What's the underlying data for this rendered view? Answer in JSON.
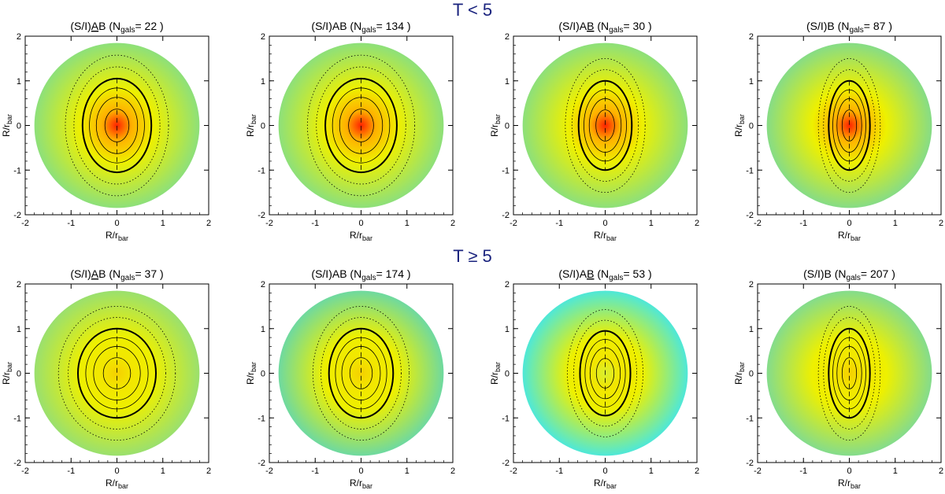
{
  "figure": {
    "rows": [
      {
        "title": "T < 5",
        "panels": [
          {
            "title": "(S/I)AB",
            "underline": "A",
            "ngals_label": "N",
            "ngals_sub": "gals",
            "ngals_value": "= 22 )",
            "peak": 1.0,
            "sx": 0.75,
            "sy": 1.05,
            "sigma": 0.62,
            "bg": "#8de07a"
          },
          {
            "title": "(S/I)AB",
            "underline": "",
            "ngals_label": "N",
            "ngals_sub": "gals",
            "ngals_value": "= 134 )",
            "peak": 0.95,
            "sx": 0.78,
            "sy": 1.05,
            "sigma": 0.6,
            "bg": "#8de07a"
          },
          {
            "title": "(S/I)AB",
            "underline": "B",
            "ngals_label": "N",
            "ngals_sub": "gals",
            "ngals_value": "= 30 )",
            "peak": 0.9,
            "sx": 0.58,
            "sy": 1.0,
            "sigma": 0.55,
            "bg": "#8de07a"
          },
          {
            "title": "(S/I)B",
            "underline": "",
            "ngals_label": "N",
            "ngals_sub": "gals",
            "ngals_value": "= 87 )",
            "peak": 0.92,
            "sx": 0.45,
            "sy": 1.0,
            "sigma": 0.55,
            "bg": "#86dc86"
          }
        ]
      },
      {
        "title": "T ≥ 5",
        "panels": [
          {
            "title": "(S/I)AB",
            "underline": "A",
            "ngals_label": "N",
            "ngals_sub": "gals",
            "ngals_value": "= 37 )",
            "peak": 0.62,
            "sx": 0.85,
            "sy": 1.0,
            "sigma": 0.7,
            "bg": "#9ae06e"
          },
          {
            "title": "(S/I)AB",
            "underline": "",
            "ngals_label": "N",
            "ngals_sub": "gals",
            "ngals_value": "= 174 )",
            "peak": 0.6,
            "sx": 0.7,
            "sy": 1.0,
            "sigma": 0.7,
            "bg": "#6ed9a0"
          },
          {
            "title": "(S/I)AB",
            "underline": "B",
            "ngals_label": "N",
            "ngals_sub": "gals",
            "ngals_value": "= 53 )",
            "peak": 0.5,
            "sx": 0.55,
            "sy": 0.95,
            "sigma": 0.65,
            "bg": "#4ee8d8"
          },
          {
            "title": "(S/I)B",
            "underline": "",
            "ngals_label": "N",
            "ngals_sub": "gals",
            "ngals_value": "= 207 )",
            "peak": 0.58,
            "sx": 0.45,
            "sy": 1.0,
            "sigma": 0.65,
            "bg": "#84dc8c"
          }
        ]
      }
    ]
  },
  "chart_data": {
    "type": "heatmap",
    "description_free": true,
    "xlabel": "R/r",
    "xlabel_sub": "bar",
    "ylabel": "R/r",
    "ylabel_sub": "bar",
    "xlim": [
      -2,
      2
    ],
    "ylim": [
      -2,
      2
    ],
    "xticks": [
      "-2",
      "-1",
      "0",
      "1",
      "2"
    ],
    "yticks": [
      "-2",
      "-1",
      "0",
      "1",
      "2"
    ],
    "colormap": [
      "#00ffff",
      "#7fe87f",
      "#ffff00",
      "#ffa500",
      "#ff0000"
    ]
  }
}
